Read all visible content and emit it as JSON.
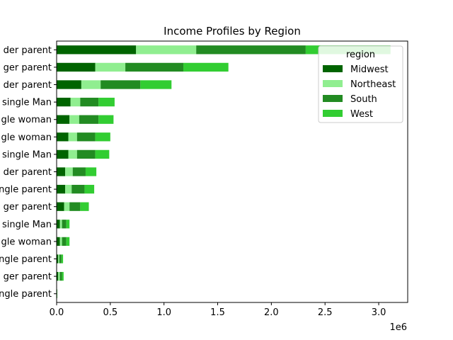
{
  "chart_data": {
    "type": "bar",
    "orientation": "horizontal",
    "stacked": true,
    "title": "Income Profiles by Region",
    "xlabel": "",
    "ylabel": "",
    "x_offset_label": "1e6",
    "xlim": [
      0,
      3270000
    ],
    "x_ticks": [
      0,
      500000,
      1000000,
      1500000,
      2000000,
      2500000,
      3000000
    ],
    "x_tick_labels": [
      "0.0",
      "0.5",
      "1.0",
      "1.5",
      "2.0",
      "2.5",
      "3.0"
    ],
    "categories": [
      "ngle parent",
      "ger parent",
      "ngle parent",
      "gle woman",
      "single Man",
      "ger parent",
      "ngle parent",
      "der parent",
      "single Man",
      "gle woman",
      "gle woman",
      "single Man",
      "der parent",
      "ger parent",
      "der parent"
    ],
    "series": [
      {
        "name": "Midwest",
        "color": "#006400",
        "values": [
          3000,
          15000,
          15000,
          30000,
          30000,
          70000,
          80000,
          80000,
          110000,
          110000,
          120000,
          130000,
          230000,
          360000,
          740000
        ]
      },
      {
        "name": "Northeast",
        "color": "#90ee90",
        "values": [
          1000,
          15000,
          10000,
          20000,
          20000,
          50000,
          60000,
          70000,
          80000,
          80000,
          90000,
          90000,
          180000,
          280000,
          560000
        ]
      },
      {
        "name": "South",
        "color": "#228b22",
        "values": [
          2000,
          20000,
          20000,
          40000,
          40000,
          100000,
          120000,
          120000,
          170000,
          170000,
          180000,
          170000,
          370000,
          540000,
          1020000
        ]
      },
      {
        "name": "West",
        "color": "#32cd32",
        "values": [
          1000,
          15000,
          15000,
          30000,
          30000,
          80000,
          90000,
          100000,
          130000,
          140000,
          140000,
          150000,
          290000,
          420000,
          790000
        ]
      }
    ],
    "legend": {
      "title": "region",
      "position": "upper right"
    },
    "grid": false
  }
}
